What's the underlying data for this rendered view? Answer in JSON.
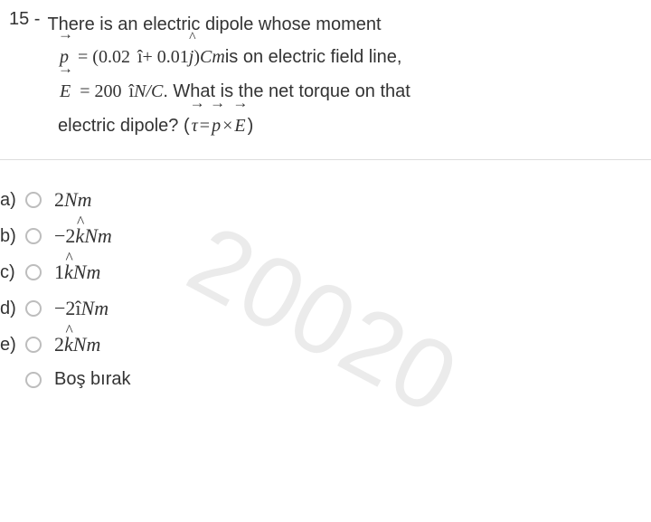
{
  "question": {
    "number": "15 -",
    "line1": "There is an electric dipole whose moment",
    "p_vector_letter": "p",
    "eq1_prefix": "= (0.02",
    "ihat": "î",
    "eq1_mid": " + 0.01",
    "jhat_base": "j",
    "eq1_suffix": ")",
    "unit_p": "Cm",
    "line2_suffix": " is on electric field line,",
    "e_vector_letter": "E",
    "eq2_prefix": "= 200",
    "eq2_ihat": "î",
    "unit_e": "N/C",
    "line3_suffix": ". What is the net torque on that",
    "line4_prefix": "electric dipole? ( ",
    "tau_letter": "τ",
    "eq3_mid1": " = ",
    "p2_letter": "p",
    "eq3_mid2": " × ",
    "e2_letter": "E",
    "eq3_suffix": " )"
  },
  "options": {
    "a": {
      "letter": "a)",
      "prefix": "2",
      "unit": "Nm",
      "hat": ""
    },
    "b": {
      "letter": "b)",
      "prefix": "−2",
      "hat": "k",
      "unit": "Nm"
    },
    "c": {
      "letter": "c)",
      "prefix": "1",
      "hat": "k",
      "unit": "Nm"
    },
    "d": {
      "letter": "d)",
      "prefix": "−2",
      "hat": "î",
      "unit": "Nm",
      "noHatDecor": true
    },
    "e": {
      "letter": "e)",
      "prefix": "2",
      "hat": "k",
      "unit": "Nm"
    },
    "blank": {
      "letter": "",
      "text": "Boş bırak"
    }
  },
  "watermark": "20020",
  "styling": {
    "text_color": "#333333",
    "border_color": "#dddddd",
    "radio_border": "#bdbdbd",
    "watermark_color": "#ebebeb",
    "background": "#ffffff",
    "base_fontsize": 20,
    "option_fontsize": 22,
    "watermark_fontsize": 110,
    "watermark_rotation_deg": 28
  }
}
